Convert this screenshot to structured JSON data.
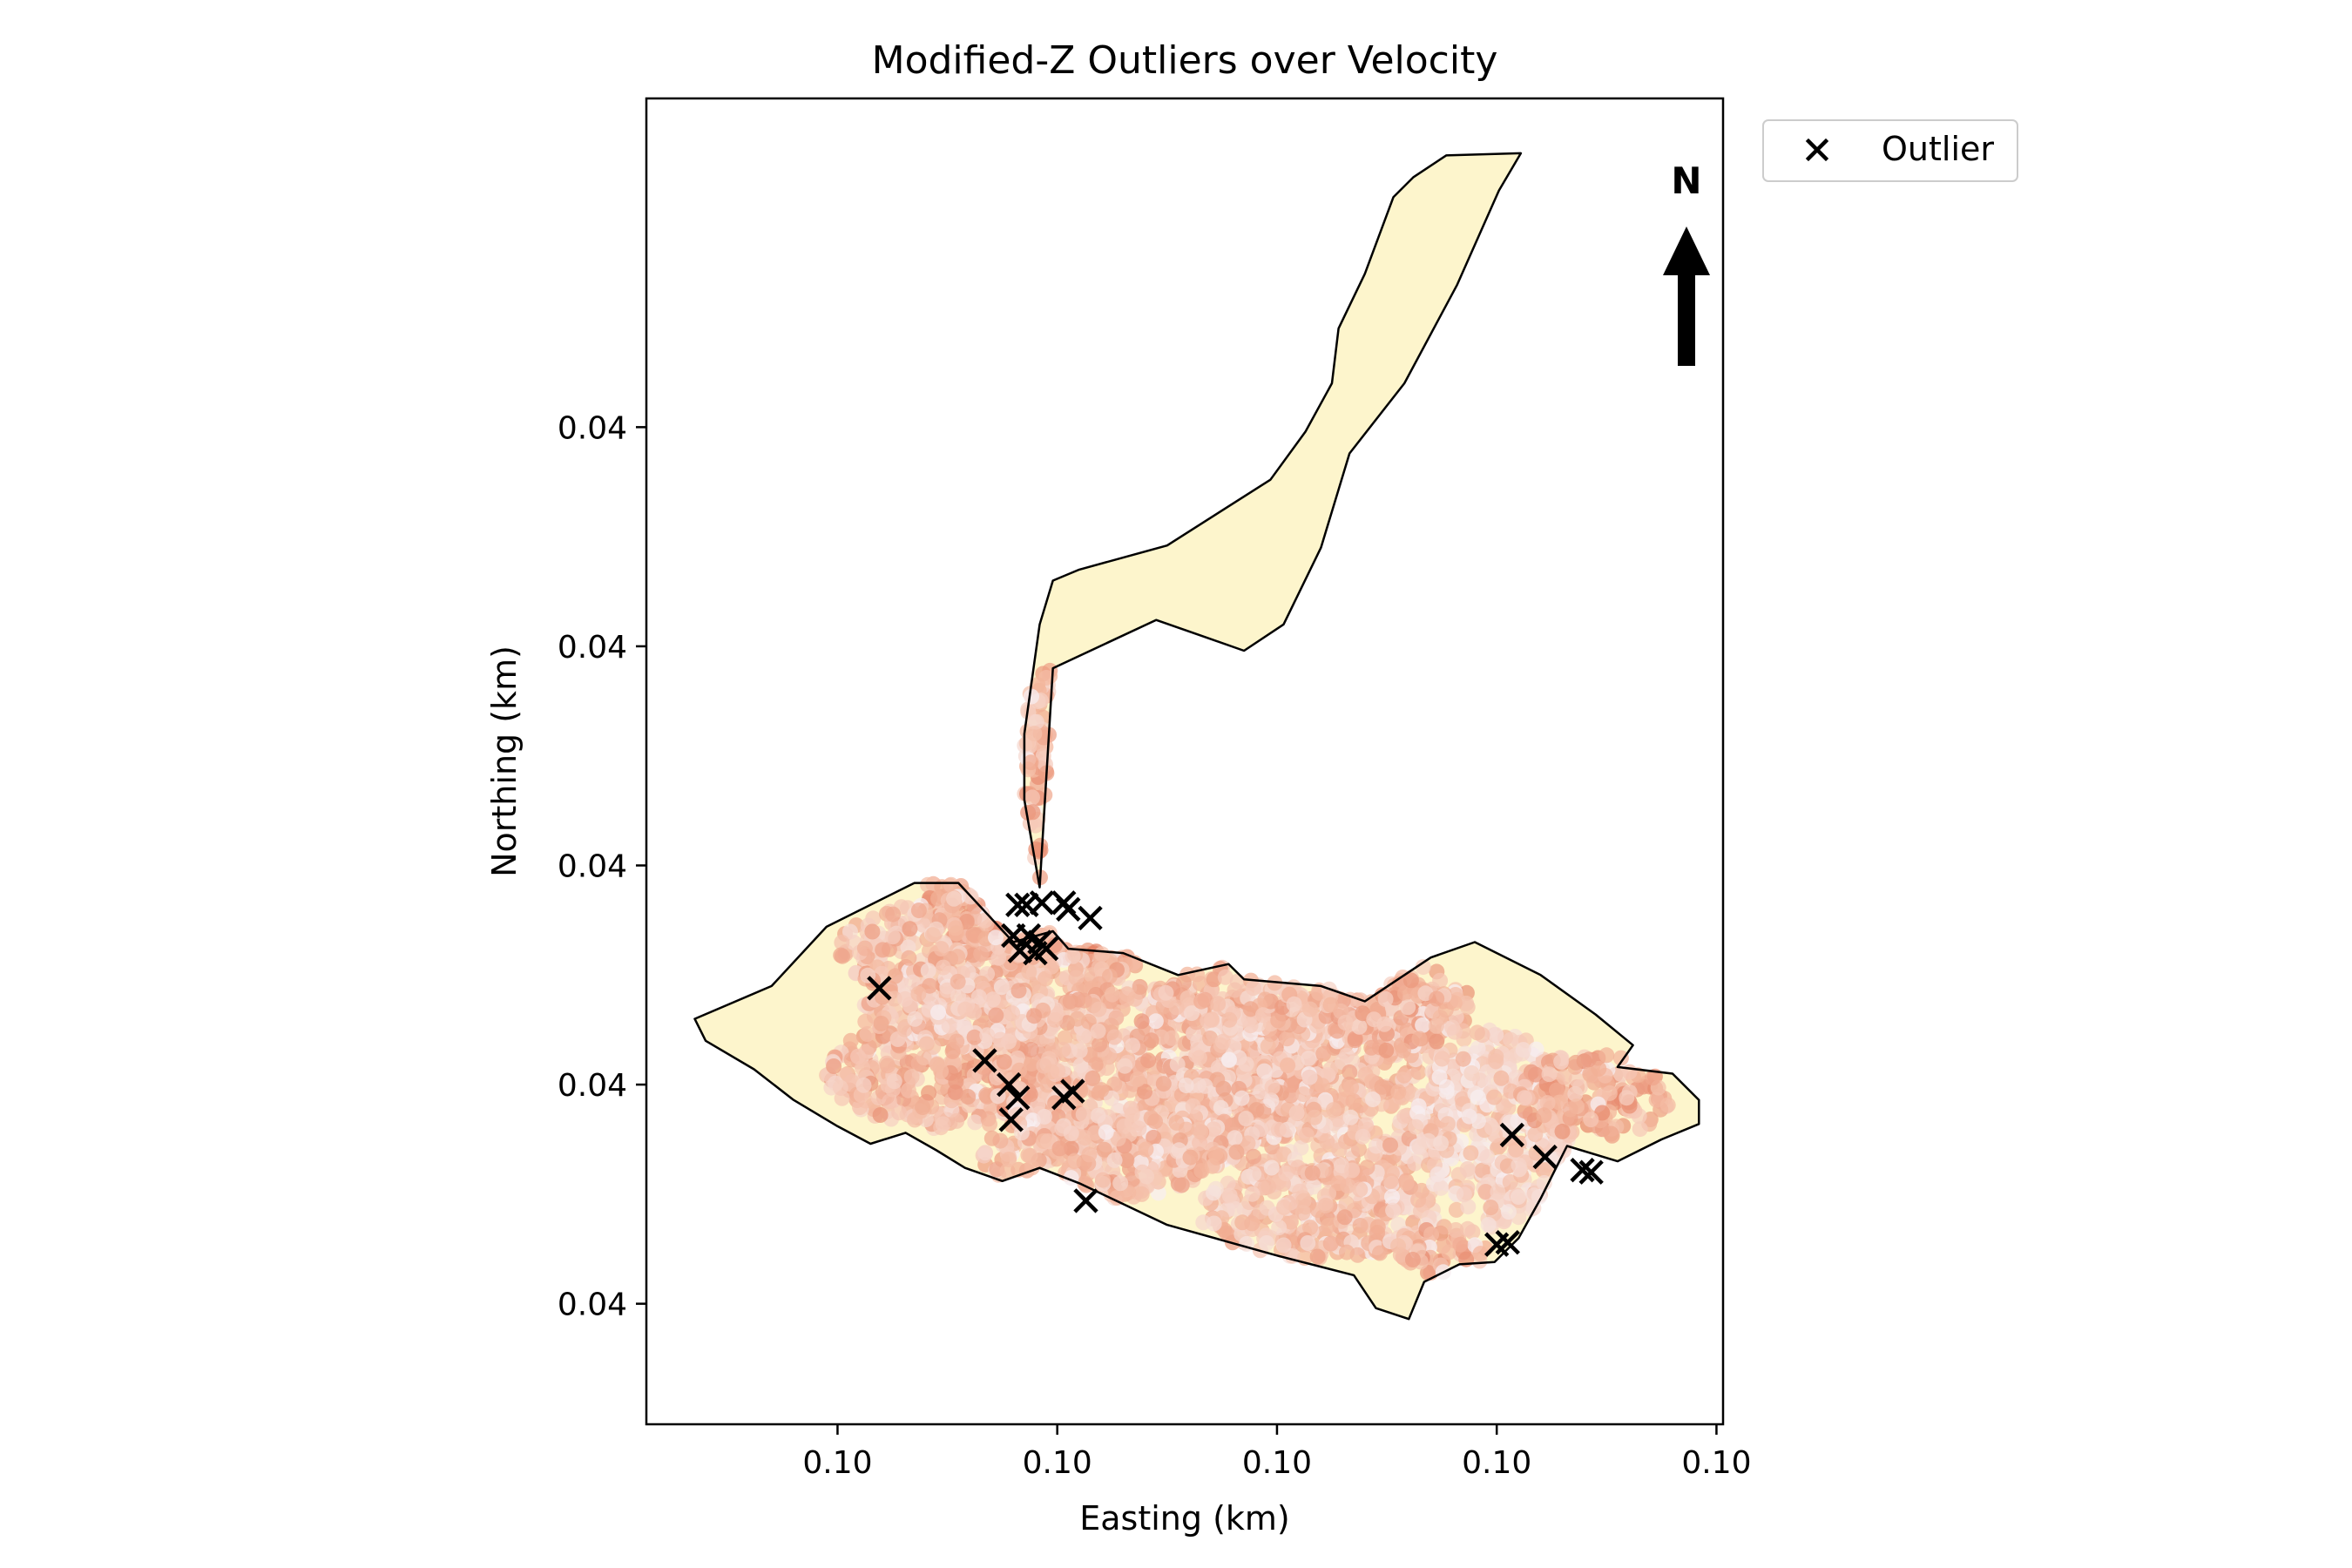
{
  "chart_data": {
    "type": "scatter",
    "title": "Modified-Z Outliers over Velocity",
    "xlabel": "Easting (km)",
    "ylabel": "Northing (km)",
    "x_ticks": [
      {
        "value": 0.0,
        "label": "0.10"
      },
      {
        "value": 1.0,
        "label": "0.10"
      },
      {
        "value": 2.0,
        "label": "0.10"
      },
      {
        "value": 3.0,
        "label": "0.10"
      },
      {
        "value": 4.0,
        "label": "0.10"
      }
    ],
    "y_ticks": [
      {
        "value": 0.0,
        "label": "0.04"
      },
      {
        "value": 1.0,
        "label": "0.04"
      },
      {
        "value": 2.0,
        "label": "0.04"
      },
      {
        "value": 3.0,
        "label": "0.04"
      },
      {
        "value": 4.0,
        "label": "0.04"
      }
    ],
    "xlim": [
      -0.87,
      4.03
    ],
    "ylim": [
      -0.55,
      5.5
    ],
    "grid": false,
    "legend": {
      "position": "outside-top-right",
      "entries": [
        {
          "marker": "x",
          "label": "Outlier"
        }
      ]
    },
    "north_arrow": {
      "label": "N",
      "position": "top-right"
    },
    "colors": {
      "region_fill": "#fdf5cc",
      "region_edge": "#000000",
      "velocity_low": "#f7f4f9",
      "velocity_mid": "#f4b9a0",
      "velocity_high": "#de6b4e",
      "outlier": "#000000"
    },
    "region_boundary": [
      [
        -0.65,
        1.3
      ],
      [
        -0.3,
        1.45
      ],
      [
        -0.05,
        1.72
      ],
      [
        0.35,
        1.92
      ],
      [
        0.55,
        1.92
      ],
      [
        0.8,
        1.65
      ],
      [
        0.98,
        1.7
      ],
      [
        1.05,
        1.62
      ],
      [
        1.3,
        1.6
      ],
      [
        1.55,
        1.5
      ],
      [
        1.78,
        1.55
      ],
      [
        1.85,
        1.48
      ],
      [
        2.2,
        1.45
      ],
      [
        2.4,
        1.38
      ],
      [
        2.7,
        1.58
      ],
      [
        2.9,
        1.65
      ],
      [
        3.2,
        1.5
      ],
      [
        3.45,
        1.32
      ],
      [
        3.62,
        1.18
      ],
      [
        3.55,
        1.08
      ],
      [
        3.8,
        1.05
      ],
      [
        3.92,
        0.93
      ],
      [
        3.92,
        0.82
      ],
      [
        3.75,
        0.75
      ],
      [
        3.55,
        0.65
      ],
      [
        3.32,
        0.72
      ],
      [
        3.2,
        0.48
      ],
      [
        3.1,
        0.3
      ],
      [
        2.99,
        0.19
      ],
      [
        2.83,
        0.18
      ],
      [
        2.67,
        0.1
      ],
      [
        2.6,
        -0.07
      ],
      [
        2.45,
        -0.02
      ],
      [
        2.35,
        0.13
      ],
      [
        2.0,
        0.22
      ],
      [
        1.5,
        0.36
      ],
      [
        1.1,
        0.55
      ],
      [
        0.92,
        0.62
      ],
      [
        0.75,
        0.56
      ],
      [
        0.58,
        0.62
      ],
      [
        0.45,
        0.7
      ],
      [
        0.31,
        0.78
      ],
      [
        0.15,
        0.73
      ],
      [
        0.0,
        0.81
      ],
      [
        -0.2,
        0.93
      ],
      [
        -0.38,
        1.07
      ],
      [
        -0.6,
        1.2
      ],
      [
        -0.65,
        1.3
      ]
    ],
    "corridor_boundary": [
      [
        0.92,
        1.9
      ],
      [
        0.98,
        2.9
      ],
      [
        1.45,
        3.12
      ],
      [
        1.65,
        3.05
      ],
      [
        1.85,
        2.98
      ],
      [
        2.03,
        3.1
      ],
      [
        2.2,
        3.45
      ],
      [
        2.33,
        3.88
      ],
      [
        2.58,
        4.2
      ],
      [
        2.82,
        4.65
      ],
      [
        3.01,
        5.08
      ],
      [
        3.11,
        5.25
      ],
      [
        2.77,
        5.24
      ],
      [
        2.62,
        5.14
      ],
      [
        2.53,
        5.05
      ],
      [
        2.4,
        4.7
      ],
      [
        2.28,
        4.45
      ],
      [
        2.25,
        4.2
      ],
      [
        2.13,
        3.98
      ],
      [
        1.97,
        3.76
      ],
      [
        1.5,
        3.46
      ],
      [
        1.1,
        3.35
      ],
      [
        0.98,
        3.3
      ],
      [
        0.92,
        3.1
      ],
      [
        0.85,
        2.6
      ],
      [
        0.85,
        2.3
      ],
      [
        0.92,
        1.9
      ]
    ],
    "velocity_clusters": [
      {
        "cx": 0.9,
        "cy": 2.05,
        "rx": 0.55,
        "ry": 0.55,
        "intensity": 0.55
      },
      {
        "cx": 1.25,
        "cy": 1.78,
        "rx": 0.55,
        "ry": 0.22,
        "intensity": 0.65
      },
      {
        "cx": 0.7,
        "cy": 1.62,
        "rx": 0.7,
        "ry": 0.25,
        "intensity": 0.45
      },
      {
        "cx": 0.5,
        "cy": 1.05,
        "rx": 0.55,
        "ry": 0.25,
        "intensity": 0.5
      },
      {
        "cx": 1.45,
        "cy": 1.05,
        "rx": 0.75,
        "ry": 0.4,
        "intensity": 0.45
      },
      {
        "cx": 2.2,
        "cy": 0.95,
        "rx": 0.65,
        "ry": 0.45,
        "intensity": 0.4
      },
      {
        "cx": 1.2,
        "cy": 0.68,
        "rx": 0.55,
        "ry": 0.2,
        "intensity": 0.45
      },
      {
        "cx": 2.2,
        "cy": 0.42,
        "rx": 0.55,
        "ry": 0.22,
        "intensity": 0.4
      },
      {
        "cx": 2.98,
        "cy": 0.8,
        "rx": 0.35,
        "ry": 0.45,
        "intensity": 0.3
      },
      {
        "cx": 3.45,
        "cy": 0.95,
        "rx": 0.35,
        "ry": 0.2,
        "intensity": 0.55
      },
      {
        "cx": 1.9,
        "cy": 1.4,
        "rx": 0.45,
        "ry": 0.15,
        "intensity": 0.45
      },
      {
        "cx": 2.55,
        "cy": 1.35,
        "rx": 0.35,
        "ry": 0.2,
        "intensity": 0.5
      },
      {
        "cx": 1.1,
        "cy": 2.65,
        "rx": 0.45,
        "ry": 0.25,
        "intensity": 0.45
      },
      {
        "cx": 0.55,
        "cy": 1.32,
        "rx": 0.45,
        "ry": 0.15,
        "intensity": 0.4
      },
      {
        "cx": 2.75,
        "cy": 0.25,
        "rx": 0.2,
        "ry": 0.12,
        "intensity": 0.55
      }
    ],
    "outliers": [
      {
        "x": 0.19,
        "y": 1.44
      },
      {
        "x": 0.82,
        "y": 1.82
      },
      {
        "x": 0.86,
        "y": 1.82
      },
      {
        "x": 0.93,
        "y": 1.83
      },
      {
        "x": 1.03,
        "y": 1.83
      },
      {
        "x": 1.05,
        "y": 1.8
      },
      {
        "x": 1.15,
        "y": 1.76
      },
      {
        "x": 0.8,
        "y": 1.68
      },
      {
        "x": 0.87,
        "y": 1.68
      },
      {
        "x": 0.83,
        "y": 1.61
      },
      {
        "x": 0.9,
        "y": 1.6
      },
      {
        "x": 0.92,
        "y": 1.65
      },
      {
        "x": 0.95,
        "y": 1.62
      },
      {
        "x": 0.67,
        "y": 1.11
      },
      {
        "x": 0.78,
        "y": 1.0
      },
      {
        "x": 0.82,
        "y": 0.94
      },
      {
        "x": 0.79,
        "y": 0.84
      },
      {
        "x": 1.03,
        "y": 0.94
      },
      {
        "x": 1.07,
        "y": 0.97
      },
      {
        "x": 1.13,
        "y": 0.47
      },
      {
        "x": 3.07,
        "y": 0.77
      },
      {
        "x": 3.22,
        "y": 0.67
      },
      {
        "x": 3.39,
        "y": 0.61
      },
      {
        "x": 3.43,
        "y": 0.6
      },
      {
        "x": 3.0,
        "y": 0.27
      },
      {
        "x": 3.05,
        "y": 0.28
      }
    ]
  }
}
